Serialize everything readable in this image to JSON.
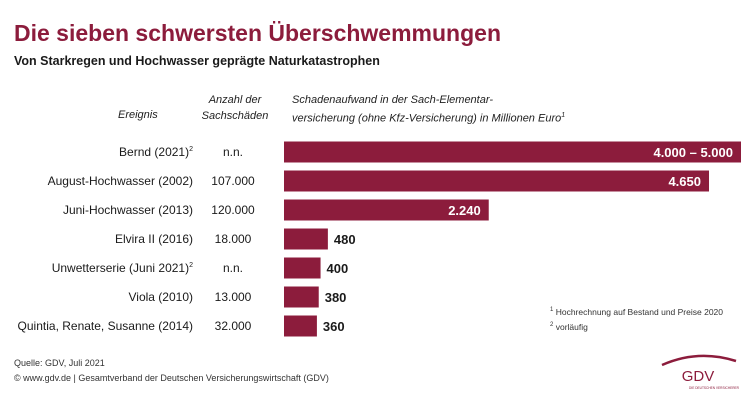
{
  "title": "Die sieben schwersten Überschwemmungen",
  "subtitle": "Von Starkregen und Hochwasser geprägte Naturkatastrophen",
  "headers": {
    "event": "Ereignis",
    "count_line1": "Anzahl der",
    "count_line2": "Sachschäden",
    "damage_line1": "Schadenaufwand in der Sach-Elementar-",
    "damage_line2": "versicherung (ohne Kfz-Versicherung) in Millionen Euro",
    "damage_sup": "1"
  },
  "colors": {
    "bar": "#8c1c3c",
    "title": "#8c1c3c"
  },
  "chart_data": {
    "type": "bar",
    "orientation": "horizontal",
    "unit": "Millionen Euro",
    "categories": [
      "Bernd (2021)",
      "August-Hochwasser (2002)",
      "Juni-Hochwasser (2013)",
      "Elvira II (2016)",
      "Unwetterserie (Juni 2021)",
      "Viola (2010)",
      "Quintia, Renate, Susanne (2014)"
    ],
    "category_sup": [
      "2",
      "",
      "",
      "",
      "2",
      "",
      ""
    ],
    "claims_count": [
      "n.n.",
      "107.000",
      "120.000",
      "18.000",
      "n.n.",
      "13.000",
      "32.000"
    ],
    "values": [
      5000,
      4650,
      2240,
      480,
      400,
      380,
      360
    ],
    "value_ranges": [
      [
        4000,
        5000
      ],
      null,
      null,
      null,
      null,
      null,
      null
    ],
    "value_labels": [
      "4.000 – 5.000",
      "4.650",
      "2.240",
      "480",
      "400",
      "380",
      "360"
    ],
    "xlim": [
      0,
      5000
    ]
  },
  "footnotes": [
    "Hochrechnung auf Bestand und Preise 2020",
    "vorläufig"
  ],
  "footnote_marks": [
    "1",
    "2"
  ],
  "source_line1": "Quelle: GDV, Juli 2021",
  "source_line2": "© www.gdv.de | Gesamtverband der Deutschen Versicherungswirtschaft (GDV)",
  "logo": {
    "text": "GDV",
    "tagline": "DIE DEUTSCHEN VERSICHERER"
  }
}
